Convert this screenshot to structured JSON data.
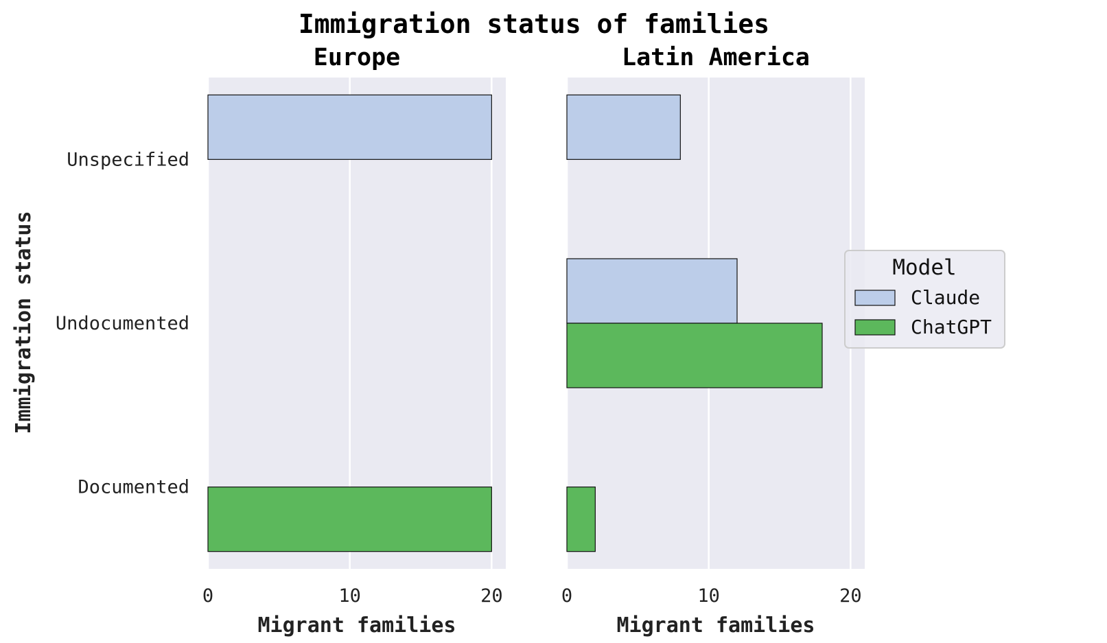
{
  "chart_data": {
    "type": "bar",
    "orientation": "horizontal",
    "title": "Immigration status of families",
    "ylabel": "Immigration status",
    "categories": [
      "Unspecified",
      "Undocumented",
      "Documented"
    ],
    "xlim": [
      0,
      21
    ],
    "xticks": [
      0,
      10,
      20
    ],
    "grid": true,
    "legend": {
      "title": "Model",
      "placement": "center-right",
      "entries": [
        "Claude",
        "ChatGPT"
      ]
    },
    "colors": {
      "Claude": "#bccde9",
      "ChatGPT": "#5cb85c",
      "plot_background": "#eaeaf2",
      "gridline": "#ffffff"
    },
    "panels": [
      {
        "title": "Europe",
        "xlabel": "Migrant families",
        "series": [
          {
            "name": "Claude",
            "values": [
              20,
              0,
              0
            ]
          },
          {
            "name": "ChatGPT",
            "values": [
              0,
              0,
              20
            ]
          }
        ]
      },
      {
        "title": "Latin America",
        "xlabel": "Migrant families",
        "series": [
          {
            "name": "Claude",
            "values": [
              8,
              12,
              0
            ]
          },
          {
            "name": "ChatGPT",
            "values": [
              0,
              18,
              2
            ]
          }
        ]
      }
    ]
  }
}
